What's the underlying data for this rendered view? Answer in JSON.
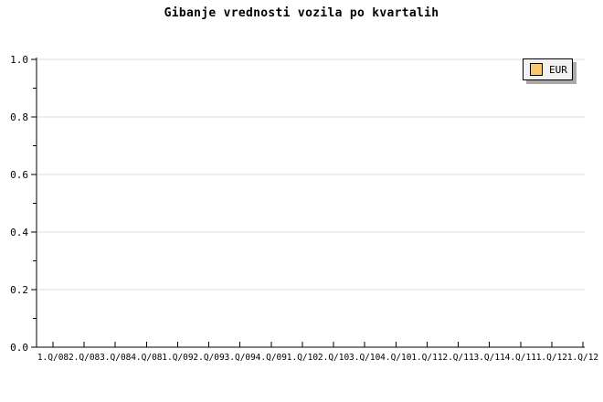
{
  "chart_data": {
    "type": "line",
    "title": "Gibanje vrednosti vozila po kvartalih",
    "categories": [
      "1.Q/08",
      "2.Q/08",
      "3.Q/08",
      "4.Q/08",
      "1.Q/09",
      "2.Q/09",
      "3.Q/09",
      "4.Q/09",
      "1.Q/10",
      "2.Q/10",
      "3.Q/10",
      "4.Q/10",
      "1.Q/11",
      "2.Q/11",
      "3.Q/11",
      "4.Q/11",
      "1.Q/12",
      "1.Q/12"
    ],
    "series": [
      {
        "name": "EUR",
        "color": "#F9C96C",
        "values": []
      }
    ],
    "xlabel": "",
    "ylabel": "",
    "ylim": [
      0.0,
      1.0
    ],
    "yticks": [
      0.0,
      0.2,
      0.4,
      0.6,
      0.8,
      1.0
    ],
    "ytick_labels": [
      "0.0",
      "0.2",
      "0.4",
      "0.6",
      "0.8",
      "1.0"
    ],
    "minor_ytick_step": 0.1,
    "grid": "horizontal-major",
    "legend": {
      "position": "top-right",
      "items": [
        {
          "label": "EUR",
          "swatch_color": "#F9C96C"
        }
      ]
    },
    "colors": {
      "background": "#FFFFFF",
      "axis": "#000000",
      "grid": "#DEDEDE",
      "text": "#000000",
      "legend_fill": "#F2F2F2",
      "legend_border": "#000000",
      "legend_shadow": "#A9A9A9"
    }
  }
}
